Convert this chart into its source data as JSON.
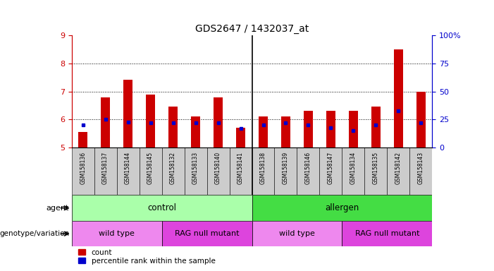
{
  "title": "GDS2647 / 1432037_at",
  "samples": [
    "GSM158136",
    "GSM158137",
    "GSM158144",
    "GSM158145",
    "GSM158132",
    "GSM158133",
    "GSM158140",
    "GSM158141",
    "GSM158138",
    "GSM158139",
    "GSM158146",
    "GSM158147",
    "GSM158134",
    "GSM158135",
    "GSM158142",
    "GSM158143"
  ],
  "counts": [
    5.57,
    6.78,
    7.41,
    6.9,
    6.46,
    6.1,
    6.8,
    5.72,
    6.12,
    6.1,
    6.3,
    6.3,
    6.3,
    6.46,
    8.5,
    7.0
  ],
  "percentiles": [
    20,
    25,
    23,
    22,
    22,
    22,
    22,
    17,
    20,
    22,
    20,
    18,
    15,
    20,
    33,
    22
  ],
  "ylim_left": [
    5,
    9
  ],
  "ylim_right": [
    0,
    100
  ],
  "yticks_left": [
    5,
    6,
    7,
    8,
    9
  ],
  "yticks_right": [
    0,
    25,
    50,
    75,
    100
  ],
  "yticklabels_right": [
    "0",
    "25",
    "50",
    "75",
    "100%"
  ],
  "bar_color": "#cc0000",
  "percentile_color": "#0000cc",
  "bar_bottom": 5.0,
  "agent_groups": [
    {
      "label": "control",
      "start": 0,
      "end": 7,
      "color": "#aaffaa"
    },
    {
      "label": "allergen",
      "start": 8,
      "end": 15,
      "color": "#44dd44"
    }
  ],
  "genotype_groups": [
    {
      "label": "wild type",
      "start": 0,
      "end": 3,
      "color": "#ee88ee"
    },
    {
      "label": "RAG null mutant",
      "start": 4,
      "end": 7,
      "color": "#dd44dd"
    },
    {
      "label": "wild type",
      "start": 8,
      "end": 11,
      "color": "#ee88ee"
    },
    {
      "label": "RAG null mutant",
      "start": 12,
      "end": 15,
      "color": "#dd44dd"
    }
  ],
  "agent_label": "agent",
  "genotype_label": "genotype/variation",
  "legend_count_label": "count",
  "legend_pct_label": "percentile rank within the sample",
  "tick_color_left": "#cc0000",
  "tick_color_right": "#0000cc",
  "background_color": "#ffffff",
  "label_area_bg": "#cccccc",
  "col_separator": 7.5,
  "grid_yticks": [
    6,
    7,
    8
  ],
  "n_samples": 16
}
